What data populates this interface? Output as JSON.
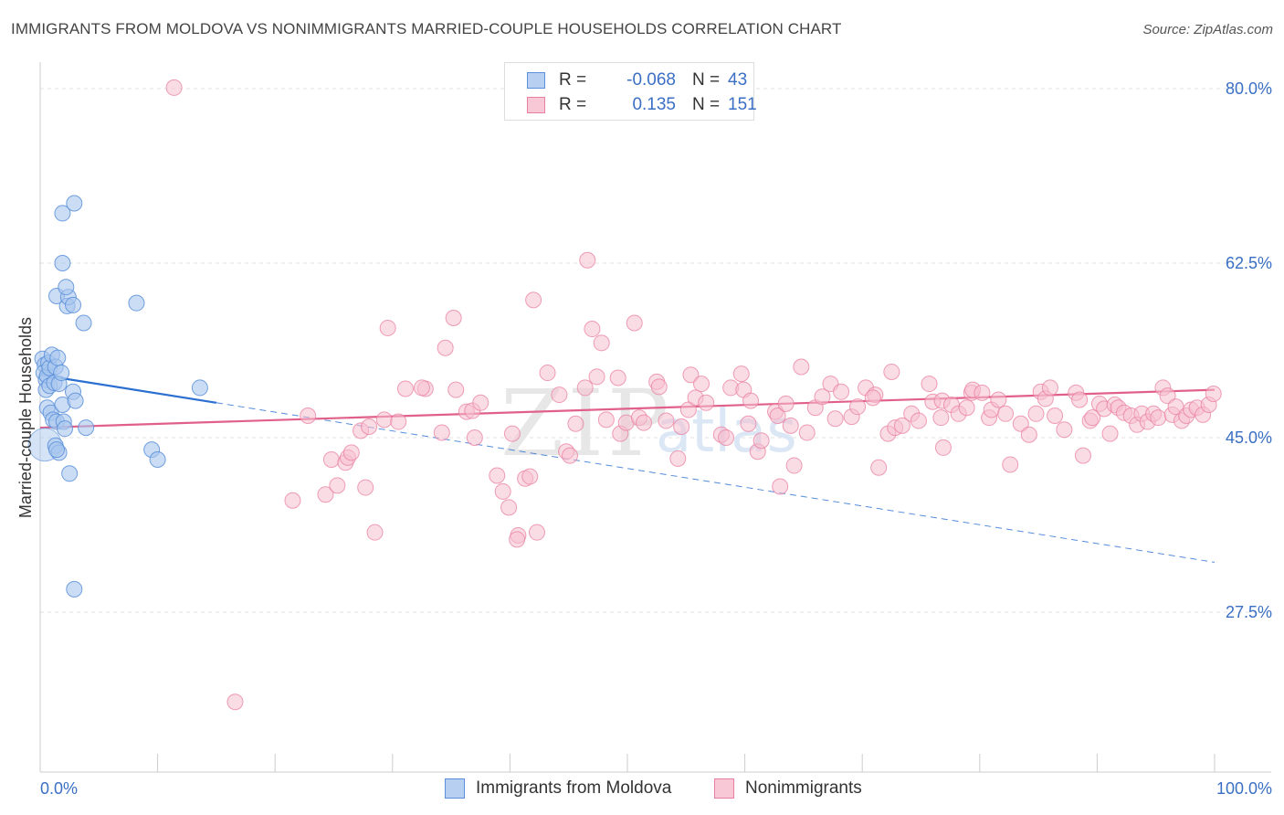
{
  "header": {
    "title": "IMMIGRANTS FROM MOLDOVA VS NONIMMIGRANTS MARRIED-COUPLE HOUSEHOLDS CORRELATION CHART",
    "source": "Source: ZipAtlas.com"
  },
  "legend": {
    "r_label": "R =",
    "n_label": "N =",
    "series": [
      {
        "name": "Immigrants from Moldova",
        "r": "-0.068",
        "n": "43"
      },
      {
        "name": "Nonimmigrants",
        "r": "0.135",
        "n": "151"
      }
    ]
  },
  "watermark": {
    "zip": "ZIP",
    "atlas": "atlas"
  },
  "colors": {
    "blue": "#5b8fd9",
    "blue_fill": "#a9c7ee",
    "blue_line": "#2b6fd1",
    "pink": "#e97fa0",
    "pink_fill": "#f6bfd0",
    "pink_line": "#e0608a",
    "axis_text": "#3a6fc4",
    "grid": "#e2e2e2"
  },
  "chart_data": {
    "type": "scatter",
    "title": "IMMIGRANTS FROM MOLDOVA VS NONIMMIGRANTS MARRIED-COUPLE HOUSEHOLDS CORRELATION CHART",
    "xlabel": "",
    "ylabel": "Married-couple Households",
    "xlim": [
      0,
      100
    ],
    "ylim": [
      10,
      83
    ],
    "x_tick_labels": [
      "0.0%",
      "100.0%"
    ],
    "y_ticks": [
      27.5,
      45.0,
      62.5,
      80.0
    ],
    "y_tick_labels": [
      "27.5%",
      "45.0%",
      "62.5%",
      "80.0%"
    ],
    "grid": true,
    "series": [
      {
        "name": "Immigrants from Moldova",
        "color": "#5b8fd9",
        "r": -0.068,
        "n": 43,
        "trend": {
          "x0": 0,
          "y0": 51.3,
          "x1_solid": 15,
          "y1_solid": 48.5,
          "x1": 100,
          "y1": 32.5
        },
        "points": [
          [
            0.2,
            52.9
          ],
          [
            0.4,
            52.3
          ],
          [
            0.3,
            51.5
          ],
          [
            0.5,
            50.8
          ],
          [
            0.6,
            51.2
          ],
          [
            0.7,
            52.5
          ],
          [
            0.8,
            52.0
          ],
          [
            1.0,
            53.3
          ],
          [
            1.3,
            52.1
          ],
          [
            1.5,
            53.0
          ],
          [
            0.5,
            49.8
          ],
          [
            0.8,
            50.2
          ],
          [
            1.2,
            50.5
          ],
          [
            1.6,
            50.4
          ],
          [
            1.8,
            51.5
          ],
          [
            0.6,
            48.0
          ],
          [
            0.9,
            47.5
          ],
          [
            1.1,
            46.8
          ],
          [
            1.4,
            46.6
          ],
          [
            1.9,
            48.3
          ],
          [
            2.0,
            46.6
          ],
          [
            2.8,
            49.6
          ],
          [
            3.0,
            48.7
          ],
          [
            1.3,
            44.2
          ],
          [
            1.6,
            43.5
          ],
          [
            1.4,
            43.8
          ],
          [
            2.1,
            45.9
          ],
          [
            2.5,
            41.4
          ],
          [
            3.9,
            46.0
          ],
          [
            2.9,
            29.8
          ],
          [
            1.4,
            59.2
          ],
          [
            2.3,
            58.2
          ],
          [
            2.4,
            59.1
          ],
          [
            2.8,
            58.3
          ],
          [
            2.2,
            60.1
          ],
          [
            1.9,
            62.5
          ],
          [
            1.9,
            67.5
          ],
          [
            2.9,
            68.5
          ],
          [
            3.7,
            56.5
          ],
          [
            8.2,
            58.5
          ],
          [
            9.5,
            43.8
          ],
          [
            10.0,
            42.8
          ],
          [
            13.6,
            50.0
          ]
        ],
        "sizes": [
          12,
          12,
          12,
          12,
          12,
          12,
          12,
          12,
          12,
          12,
          12,
          12,
          12,
          12,
          12,
          12,
          12,
          12,
          12,
          12,
          12,
          12,
          12,
          12,
          12,
          12,
          12,
          12,
          12,
          12,
          12,
          12,
          12,
          12,
          12,
          12,
          12,
          12,
          12,
          12,
          12,
          12,
          12
        ],
        "big_points": [
          [
            0.4,
            44.3
          ]
        ]
      },
      {
        "name": "Nonimmigrants",
        "color": "#e97fa0",
        "r": 0.135,
        "n": 151,
        "trend": {
          "x0": 0,
          "y0": 46.0,
          "x1": 100,
          "y1": 49.8
        },
        "points": [
          [
            11.4,
            80.1
          ],
          [
            16.6,
            18.5
          ],
          [
            21.5,
            38.7
          ],
          [
            22.8,
            47.2
          ],
          [
            24.3,
            39.3
          ],
          [
            24.8,
            42.8
          ],
          [
            25.3,
            40.2
          ],
          [
            26.0,
            42.5
          ],
          [
            26.2,
            43.0
          ],
          [
            26.5,
            43.5
          ],
          [
            27.3,
            45.7
          ],
          [
            27.7,
            40.0
          ],
          [
            28.5,
            35.5
          ],
          [
            28.0,
            46.1
          ],
          [
            29.3,
            46.8
          ],
          [
            29.6,
            56.0
          ],
          [
            30.5,
            46.6
          ],
          [
            31.1,
            49.9
          ],
          [
            32.8,
            49.9
          ],
          [
            32.5,
            50.0
          ],
          [
            34.2,
            45.5
          ],
          [
            34.5,
            54.0
          ],
          [
            35.2,
            57.0
          ],
          [
            35.4,
            49.8
          ],
          [
            36.3,
            47.6
          ],
          [
            36.8,
            47.7
          ],
          [
            37.0,
            45.0
          ],
          [
            37.5,
            48.5
          ],
          [
            38.9,
            41.2
          ],
          [
            39.4,
            39.6
          ],
          [
            39.9,
            38.0
          ],
          [
            40.2,
            45.4
          ],
          [
            40.7,
            35.2
          ],
          [
            41.3,
            40.9
          ],
          [
            41.7,
            41.1
          ],
          [
            42.0,
            58.8
          ],
          [
            42.3,
            35.5
          ],
          [
            43.2,
            51.5
          ],
          [
            44.2,
            49.3
          ],
          [
            44.8,
            43.6
          ],
          [
            45.1,
            43.2
          ],
          [
            45.6,
            46.4
          ],
          [
            46.4,
            50.0
          ],
          [
            46.6,
            62.8
          ],
          [
            47.0,
            55.9
          ],
          [
            47.4,
            51.1
          ],
          [
            47.8,
            54.5
          ],
          [
            48.2,
            46.8
          ],
          [
            49.2,
            51.0
          ],
          [
            49.4,
            45.4
          ],
          [
            49.9,
            46.5
          ],
          [
            50.6,
            56.5
          ],
          [
            51.0,
            47.0
          ],
          [
            51.4,
            46.5
          ],
          [
            52.5,
            50.6
          ],
          [
            52.7,
            50.1
          ],
          [
            53.3,
            46.7
          ],
          [
            54.3,
            42.9
          ],
          [
            54.6,
            46.1
          ],
          [
            55.2,
            47.8
          ],
          [
            55.4,
            51.3
          ],
          [
            55.8,
            49.0
          ],
          [
            56.3,
            50.4
          ],
          [
            56.7,
            48.5
          ],
          [
            58.0,
            45.3
          ],
          [
            58.8,
            50.0
          ],
          [
            59.7,
            51.4
          ],
          [
            59.9,
            49.8
          ],
          [
            60.3,
            46.4
          ],
          [
            60.5,
            48.7
          ],
          [
            61.1,
            43.6
          ],
          [
            61.4,
            44.7
          ],
          [
            62.6,
            47.6
          ],
          [
            62.8,
            47.2
          ],
          [
            63.0,
            40.1
          ],
          [
            63.5,
            48.4
          ],
          [
            64.2,
            42.2
          ],
          [
            64.8,
            52.1
          ],
          [
            65.3,
            45.5
          ],
          [
            66.0,
            48.0
          ],
          [
            66.6,
            49.1
          ],
          [
            67.3,
            50.4
          ],
          [
            67.7,
            46.9
          ],
          [
            68.2,
            49.6
          ],
          [
            69.1,
            47.1
          ],
          [
            69.6,
            48.1
          ],
          [
            70.3,
            50.0
          ],
          [
            71.1,
            49.3
          ],
          [
            71.4,
            42.0
          ],
          [
            72.2,
            45.4
          ],
          [
            72.5,
            51.6
          ],
          [
            72.8,
            46.0
          ],
          [
            73.4,
            46.2
          ],
          [
            74.2,
            47.4
          ],
          [
            74.8,
            46.7
          ],
          [
            75.7,
            50.4
          ],
          [
            76.0,
            48.6
          ],
          [
            76.7,
            47.0
          ],
          [
            76.8,
            48.7
          ],
          [
            76.9,
            44.0
          ],
          [
            77.6,
            48.3
          ],
          [
            78.2,
            47.4
          ],
          [
            78.9,
            48.0
          ],
          [
            79.3,
            49.5
          ],
          [
            79.4,
            49.8
          ],
          [
            80.2,
            49.5
          ],
          [
            80.8,
            47.0
          ],
          [
            81.0,
            47.8
          ],
          [
            81.6,
            48.8
          ],
          [
            82.2,
            47.4
          ],
          [
            82.6,
            42.3
          ],
          [
            83.5,
            46.4
          ],
          [
            84.2,
            45.3
          ],
          [
            84.8,
            47.4
          ],
          [
            85.2,
            49.6
          ],
          [
            85.6,
            48.9
          ],
          [
            86.0,
            50.0
          ],
          [
            86.4,
            47.2
          ],
          [
            87.2,
            45.8
          ],
          [
            88.2,
            49.5
          ],
          [
            88.5,
            48.8
          ],
          [
            88.8,
            43.2
          ],
          [
            89.4,
            46.7
          ],
          [
            89.6,
            47.0
          ],
          [
            90.2,
            48.4
          ],
          [
            90.6,
            47.9
          ],
          [
            91.1,
            45.4
          ],
          [
            91.5,
            48.3
          ],
          [
            91.8,
            48.0
          ],
          [
            92.3,
            47.5
          ],
          [
            92.9,
            47.2
          ],
          [
            93.4,
            46.3
          ],
          [
            93.8,
            47.4
          ],
          [
            94.3,
            46.6
          ],
          [
            94.8,
            47.4
          ],
          [
            95.2,
            47.0
          ],
          [
            95.6,
            50.0
          ],
          [
            96.0,
            49.2
          ],
          [
            96.4,
            47.3
          ],
          [
            96.7,
            48.1
          ],
          [
            97.2,
            46.7
          ],
          [
            97.6,
            47.2
          ],
          [
            98.0,
            47.8
          ],
          [
            98.5,
            48.0
          ],
          [
            99.0,
            47.3
          ],
          [
            99.5,
            48.3
          ],
          [
            99.9,
            49.4
          ],
          [
            58.4,
            45.0
          ],
          [
            63.9,
            46.2
          ],
          [
            70.9,
            49.0
          ],
          [
            40.6,
            34.8
          ]
        ],
        "sizes": [
          12,
          12,
          12,
          12,
          12,
          12,
          12,
          12,
          12,
          12,
          12,
          12,
          12,
          12,
          12,
          12,
          12,
          12,
          12,
          12,
          12,
          12,
          12,
          12,
          12,
          12,
          12,
          12,
          12,
          12,
          12,
          12,
          12,
          12,
          12,
          12,
          12,
          12,
          12,
          12,
          12,
          12,
          12,
          12,
          12,
          12,
          12,
          12,
          12,
          12,
          12,
          12,
          12,
          12,
          12,
          12,
          12,
          12,
          12,
          12,
          12,
          12,
          12,
          12,
          12,
          12,
          12,
          12,
          12,
          12,
          12,
          12,
          12,
          12,
          12,
          12,
          12,
          12,
          12,
          12,
          12,
          12,
          12,
          12,
          12,
          12,
          12,
          12,
          12,
          12,
          12,
          12,
          12,
          12,
          12,
          12,
          12,
          12,
          12,
          12,
          12,
          12,
          12,
          12,
          12,
          12,
          12,
          12,
          12,
          12,
          12,
          12,
          12,
          12,
          12,
          12,
          12,
          12,
          12,
          12,
          12,
          12,
          12,
          12,
          12,
          12,
          12,
          12,
          12,
          12,
          12,
          12,
          12,
          12,
          12,
          12,
          12,
          12,
          12,
          12,
          12,
          12,
          12,
          12,
          12,
          12,
          12,
          12,
          12,
          12,
          12
        ]
      }
    ]
  }
}
